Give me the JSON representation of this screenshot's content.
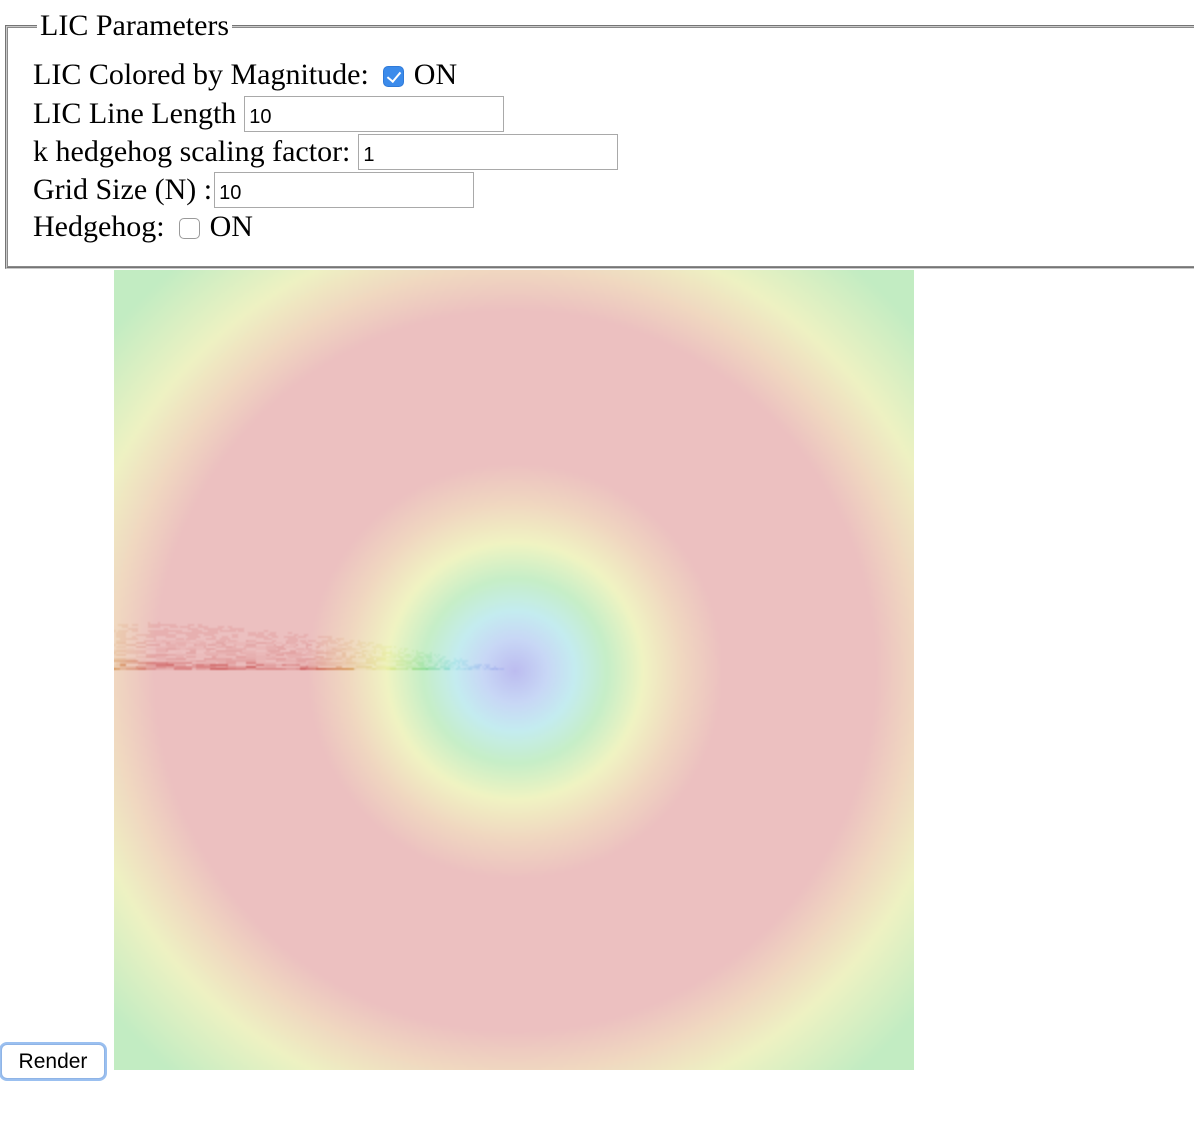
{
  "fieldset": {
    "legend": "LIC Parameters"
  },
  "params": {
    "colored_label": "LIC Colored by Magnitude:",
    "colored_checked": true,
    "colored_on": "ON",
    "line_length_label": "LIC Line Length",
    "line_length_value": "10",
    "hedgehog_scale_label": "k hedgehog scaling factor:",
    "hedgehog_scale_value": "1",
    "grid_size_label": "Grid Size (N) :",
    "grid_size_value": "10",
    "hedgehog_label": "Hedgehog:",
    "hedgehog_checked": false,
    "hedgehog_on": "ON"
  },
  "render_button": {
    "label": "Render"
  },
  "colors": {
    "checkbox_accent": "#3b8beb",
    "button_focus": "#9bc0f0"
  }
}
